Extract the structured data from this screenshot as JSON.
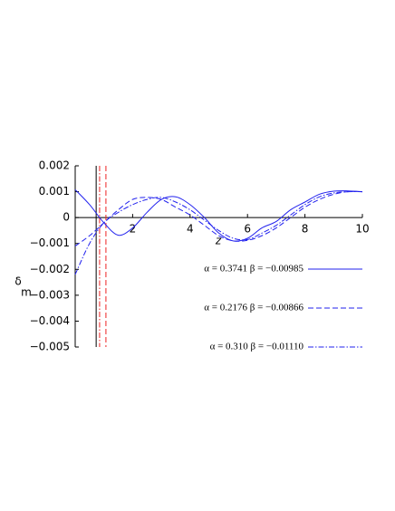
{
  "chart_data": {
    "type": "line",
    "xlabel": "z",
    "ylabel": "δ",
    "ylabel_subscript": "m",
    "xlim": [
      0,
      10
    ],
    "ylim": [
      -0.005,
      0.002
    ],
    "xticks": [
      2,
      4,
      6,
      8,
      10
    ],
    "yticks": [
      0.002,
      0.001,
      0,
      {
        "value": -0.001,
        "label": "−0.001"
      },
      {
        "value": -0.002,
        "label": "−0.002"
      },
      {
        "value": -0.003,
        "label": "−0.003"
      },
      {
        "value": -0.004,
        "label": "−0.004"
      },
      {
        "value": -0.005,
        "label": "−0.005"
      }
    ],
    "legend": "right",
    "x": [
      0,
      0.5,
      1,
      1.5,
      2,
      2.5,
      3,
      3.5,
      4,
      4.5,
      5,
      5.5,
      6,
      6.5,
      7,
      7.5,
      8,
      8.5,
      9,
      9.5,
      10
    ],
    "series": [
      {
        "name": "α = 0.3741  β = −0.00985",
        "color": "#2222ee",
        "style": "solid",
        "values": [
          0.00108,
          0.0005,
          -0.0002,
          -0.00068,
          -0.0004,
          0.0002,
          0.0007,
          0.0008,
          0.0005,
          0.0,
          -0.0006,
          -0.0009,
          -0.0008,
          -0.0004,
          -0.00015,
          0.0003,
          0.0006,
          0.0009,
          0.00102,
          0.00103,
          0.001
        ]
      },
      {
        "name": "α = 0.2176  β = −0.00866",
        "color": "#2222ee",
        "style": "dashed",
        "values": [
          -0.0011,
          -0.0007,
          -0.0002,
          0.0003,
          0.0007,
          0.00078,
          0.0007,
          0.0004,
          0.0001,
          -0.0003,
          -0.0007,
          -0.0009,
          -0.00088,
          -0.0007,
          -0.0004,
          0.0,
          0.0004,
          0.0007,
          0.0009,
          0.001,
          0.001
        ]
      },
      {
        "name": "α = 0.310  β = −0.01110",
        "color": "#2222ee",
        "style": "dashdot",
        "values": [
          -0.0022,
          -0.001,
          -0.0002,
          0.0002,
          0.0005,
          0.0007,
          0.00078,
          0.0006,
          0.0003,
          -0.0001,
          -0.0005,
          -0.0008,
          -0.00085,
          -0.0006,
          -0.0003,
          0.0001,
          0.0005,
          0.0008,
          0.00095,
          0.001,
          0.001
        ]
      }
    ],
    "vlines": [
      {
        "x": 0.73,
        "color": "#000000",
        "style": "solid"
      },
      {
        "x": 0.85,
        "color": "#ee2222",
        "style": "dashdot"
      },
      {
        "x": 1.07,
        "color": "#ee2222",
        "style": "dashed"
      }
    ]
  }
}
